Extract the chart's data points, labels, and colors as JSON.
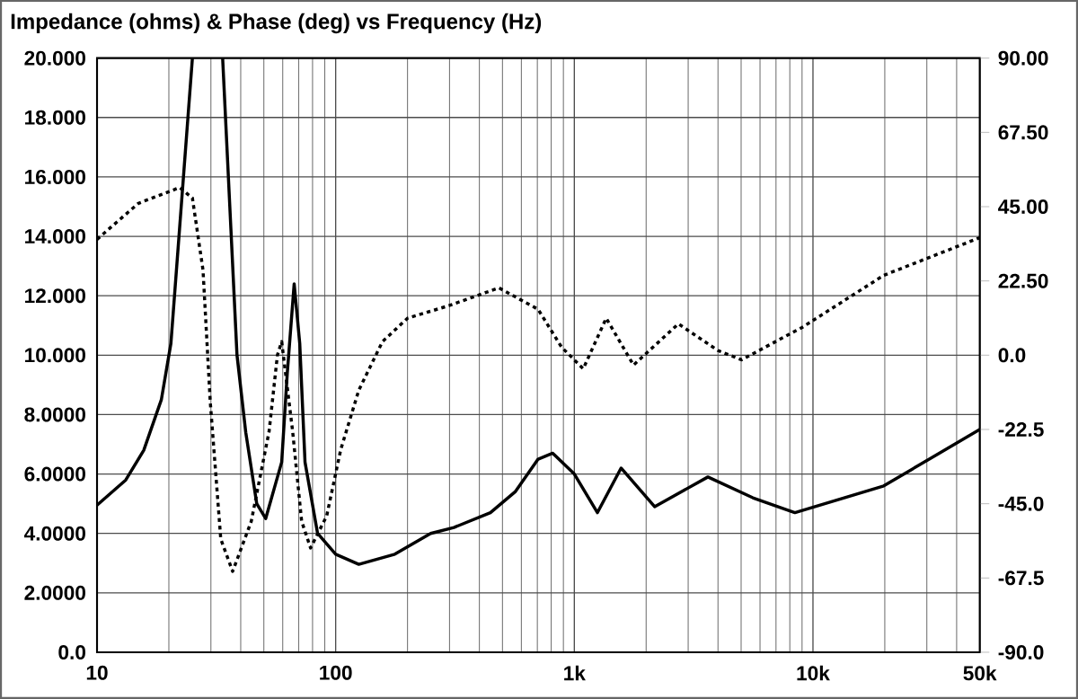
{
  "chart_data": {
    "type": "line",
    "title": "Impedance (ohms) & Phase (deg) vs Frequency (Hz)",
    "log": "x",
    "grid": true,
    "xlim": [
      10,
      50000
    ],
    "ylim": [
      0,
      20
    ],
    "y2lim": [
      -90,
      90
    ],
    "xticks": [
      10,
      100,
      {
        "value": 1000,
        "label": "1k"
      },
      {
        "value": 10000,
        "label": "10k"
      },
      {
        "value": 50000,
        "label": "50k"
      }
    ],
    "yticks": [
      {
        "value": 0,
        "label": "0.0"
      },
      {
        "value": 2,
        "label": "2.0000"
      },
      {
        "value": 4,
        "label": "4.0000"
      },
      {
        "value": 6,
        "label": "6.0000"
      },
      {
        "value": 8,
        "label": "8.0000"
      },
      {
        "value": 10,
        "label": "10.000"
      },
      {
        "value": 12,
        "label": "12.000"
      },
      {
        "value": 14,
        "label": "14.000"
      },
      {
        "value": 16,
        "label": "16.000"
      },
      {
        "value": 18,
        "label": "18.000"
      },
      {
        "value": 20,
        "label": "20.000"
      }
    ],
    "y2ticks": [
      {
        "value": -90,
        "label": "-90.0"
      },
      {
        "value": -67.5,
        "label": "-67.5"
      },
      {
        "value": -45,
        "label": "-45.0"
      },
      {
        "value": -22.5,
        "label": "-22.5"
      },
      {
        "value": 0,
        "label": "0.0"
      },
      {
        "value": 22.5,
        "label": "22.50"
      },
      {
        "value": 45,
        "label": "45.00"
      },
      {
        "value": 67.5,
        "label": "67.50"
      },
      {
        "value": 90,
        "label": "90.00"
      }
    ],
    "series": [
      {
        "color": "#000000",
        "line_style": "solid",
        "x": [
          10,
          13.2,
          15.7,
          18.6,
          20.4,
          25.1,
          29,
          33.6,
          38.6,
          42,
          46.7,
          50.9,
          59.4,
          62.7,
          67,
          70.7,
          74.4,
          84,
          100,
          125,
          177,
          250,
          313,
          445,
          565,
          705,
          812,
          1000,
          1250,
          1570,
          2170,
          3630,
          5600,
          8400,
          19800,
          50000
        ],
        "values": [
          4.95,
          5.8,
          6.8,
          8.5,
          10.4,
          20,
          null,
          20,
          10.0,
          7.4,
          5.0,
          4.5,
          6.4,
          9.4,
          12.4,
          10.4,
          6.4,
          4.0,
          3.3,
          2.96,
          3.3,
          4.0,
          4.2,
          4.7,
          5.4,
          6.5,
          6.7,
          6.0,
          4.7,
          6.2,
          4.9,
          5.9,
          5.2,
          4.7,
          5.6,
          7.5
        ]
      },
      {
        "color": "#000000",
        "line_style": "dotted",
        "axis": "y2",
        "x": [
          10,
          14.9,
          22.2,
          25.1,
          27.8,
          29.8,
          33,
          37,
          44.3,
          52.6,
          57,
          59.4,
          66,
          72,
          78.5,
          91.7,
          105,
          125,
          157,
          200,
          298,
          483,
          705,
          885,
          1090,
          1360,
          1770,
          2730,
          4000,
          5020,
          9000,
          19800,
          50000
        ],
        "values": [
          35.1,
          46,
          50.8,
          47.6,
          25.8,
          -13.9,
          -55.7,
          -65.5,
          -50.3,
          -23.1,
          0,
          4.1,
          -23,
          -50.3,
          -58.4,
          -48.7,
          -28.6,
          -10.6,
          4.1,
          11.2,
          15,
          20.4,
          13.9,
          2.4,
          -4.1,
          11.2,
          -3,
          9.5,
          1.4,
          -1.4,
          8.4,
          24.2,
          35.6
        ]
      }
    ]
  }
}
